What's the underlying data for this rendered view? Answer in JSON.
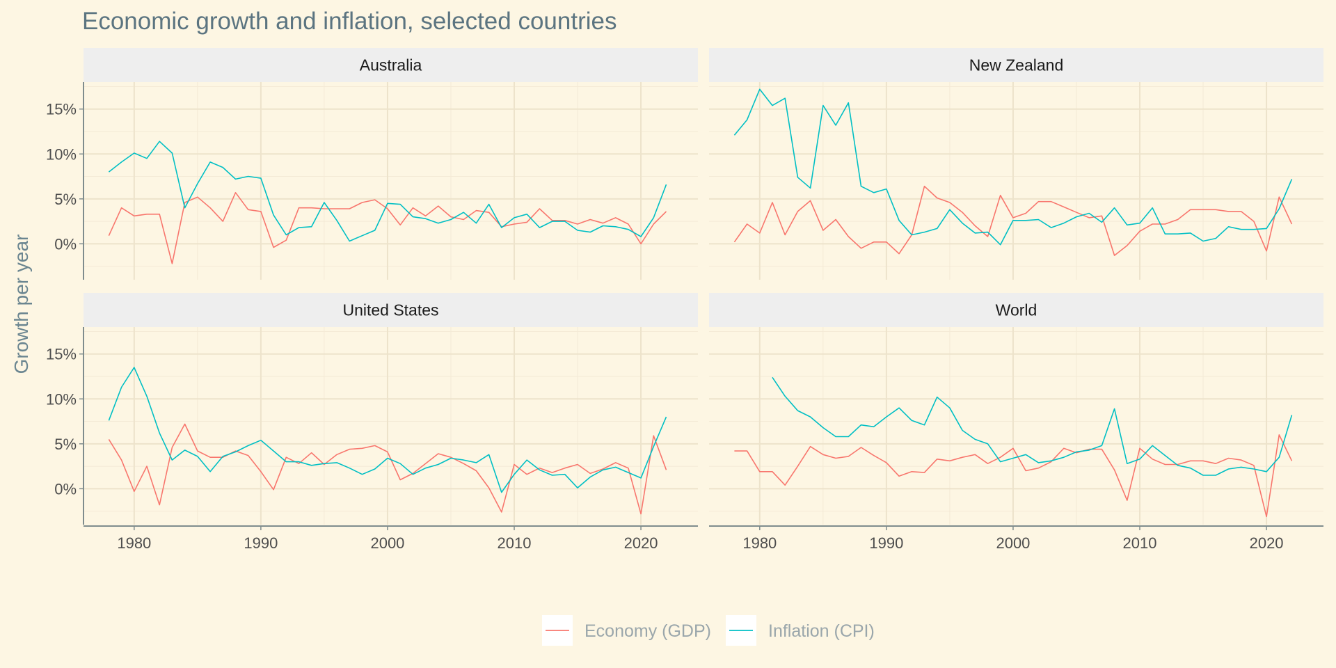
{
  "chart_data": {
    "type": "line",
    "title": "Economic growth and inflation, selected countries",
    "ylabel": "Growth per year",
    "xlabel": "",
    "xlim": [
      1976,
      2024.5
    ],
    "ylim": [
      -4,
      18
    ],
    "x_ticks": [
      1980,
      1990,
      2000,
      2010,
      2020
    ],
    "y_ticks": [
      0,
      5,
      10,
      15
    ],
    "y_tick_labels": [
      "0%",
      "5%",
      "10%",
      "15%"
    ],
    "grid": true,
    "legend_position": "bottom",
    "legend": [
      {
        "name": "Economy (GDP)",
        "color": "#f8766d"
      },
      {
        "name": "Inflation (CPI)",
        "color": "#00bfc4"
      }
    ],
    "panels": [
      {
        "name": "Australia",
        "series": [
          {
            "name": "Economy (GDP)",
            "x_start": 1978,
            "values": [
              0.9,
              4.0,
              3.1,
              3.3,
              3.3,
              -2.2,
              4.6,
              5.2,
              4.0,
              2.5,
              5.7,
              3.8,
              3.6,
              -0.4,
              0.4,
              4.0,
              4.0,
              3.9,
              3.9,
              3.9,
              4.6,
              4.9,
              3.9,
              2.1,
              4.0,
              3.1,
              4.2,
              3.0,
              2.7,
              3.7,
              3.5,
              1.9,
              2.2,
              2.4,
              3.9,
              2.6,
              2.6,
              2.2,
              2.7,
              2.3,
              2.9,
              2.2,
              0.0,
              2.2,
              3.6
            ]
          },
          {
            "name": "Inflation (CPI)",
            "x_start": 1978,
            "values": [
              8.0,
              9.1,
              10.1,
              9.5,
              11.4,
              10.1,
              4.0,
              6.7,
              9.1,
              8.5,
              7.2,
              7.5,
              7.3,
              3.2,
              1.0,
              1.8,
              1.9,
              4.6,
              2.6,
              0.3,
              0.9,
              1.5,
              4.5,
              4.4,
              3.0,
              2.8,
              2.3,
              2.7,
              3.5,
              2.3,
              4.4,
              1.8,
              2.9,
              3.3,
              1.8,
              2.5,
              2.5,
              1.5,
              1.3,
              2.0,
              1.9,
              1.6,
              0.8,
              2.9,
              6.6
            ]
          }
        ]
      },
      {
        "name": "New Zealand",
        "series": [
          {
            "name": "Economy (GDP)",
            "x_start": 1978,
            "values": [
              0.2,
              2.2,
              1.2,
              4.6,
              1.0,
              3.6,
              4.8,
              1.5,
              2.7,
              0.8,
              -0.5,
              0.2,
              0.2,
              -1.1,
              1.0,
              6.4,
              5.1,
              4.6,
              3.5,
              2.0,
              0.8,
              5.4,
              2.9,
              3.4,
              4.7,
              4.7,
              4.1,
              3.5,
              2.9,
              3.1,
              -1.3,
              -0.2,
              1.4,
              2.2,
              2.2,
              2.7,
              3.8,
              3.8,
              3.8,
              3.6,
              3.6,
              2.5,
              -0.8,
              5.2,
              2.2
            ]
          },
          {
            "name": "Inflation (CPI)",
            "x_start": 1978,
            "values": [
              12.1,
              13.8,
              17.2,
              15.4,
              16.2,
              7.4,
              6.2,
              15.4,
              13.2,
              15.7,
              6.4,
              5.7,
              6.1,
              2.6,
              1.0,
              1.3,
              1.7,
              3.8,
              2.3,
              1.2,
              1.3,
              -0.1,
              2.6,
              2.6,
              2.7,
              1.8,
              2.3,
              3.0,
              3.4,
              2.4,
              4.0,
              2.1,
              2.3,
              4.0,
              1.1,
              1.1,
              1.2,
              0.3,
              0.6,
              1.9,
              1.6,
              1.6,
              1.7,
              3.9,
              7.2
            ]
          }
        ]
      },
      {
        "name": "United States",
        "series": [
          {
            "name": "Economy (GDP)",
            "x_start": 1978,
            "values": [
              5.5,
              3.2,
              -0.3,
              2.5,
              -1.8,
              4.6,
              7.2,
              4.2,
              3.5,
              3.5,
              4.2,
              3.7,
              1.9,
              -0.1,
              3.5,
              2.8,
              4.0,
              2.7,
              3.8,
              4.4,
              4.5,
              4.8,
              4.1,
              1.0,
              1.7,
              2.8,
              3.9,
              3.5,
              2.8,
              2.0,
              0.1,
              -2.6,
              2.7,
              1.6,
              2.3,
              1.8,
              2.3,
              2.7,
              1.7,
              2.2,
              2.9,
              2.3,
              -2.8,
              5.9,
              2.1
            ]
          },
          {
            "name": "Inflation (CPI)",
            "x_start": 1978,
            "values": [
              7.6,
              11.3,
              13.5,
              10.3,
              6.2,
              3.2,
              4.3,
              3.6,
              1.9,
              3.6,
              4.1,
              4.8,
              5.4,
              4.2,
              3.0,
              3.0,
              2.6,
              2.8,
              2.9,
              2.3,
              1.6,
              2.2,
              3.4,
              2.8,
              1.6,
              2.3,
              2.7,
              3.4,
              3.2,
              2.9,
              3.8,
              -0.4,
              1.6,
              3.2,
              2.1,
              1.5,
              1.6,
              0.1,
              1.3,
              2.1,
              2.4,
              1.8,
              1.2,
              4.7,
              8.0
            ]
          }
        ]
      },
      {
        "name": "World",
        "series": [
          {
            "name": "Economy (GDP)",
            "x_start": 1978,
            "values": [
              4.2,
              4.2,
              1.9,
              1.9,
              0.4,
              2.5,
              4.7,
              3.8,
              3.4,
              3.6,
              4.6,
              3.7,
              2.9,
              1.4,
              1.9,
              1.8,
              3.3,
              3.1,
              3.5,
              3.8,
              2.8,
              3.5,
              4.5,
              2.0,
              2.3,
              3.0,
              4.5,
              4.0,
              4.4,
              4.4,
              2.1,
              -1.3,
              4.5,
              3.3,
              2.7,
              2.7,
              3.1,
              3.1,
              2.8,
              3.4,
              3.2,
              2.6,
              -3.1,
              6.0,
              3.1
            ]
          },
          {
            "name": "Inflation (CPI)",
            "x_start": 1981,
            "values": [
              12.4,
              10.3,
              8.7,
              8.0,
              6.8,
              5.8,
              5.8,
              7.1,
              6.9,
              8.0,
              9.0,
              7.6,
              7.1,
              10.2,
              9.0,
              6.5,
              5.5,
              5.0,
              3.0,
              3.4,
              3.8,
              2.9,
              3.1,
              3.5,
              4.1,
              4.3,
              4.8,
              8.9,
              2.8,
              3.3,
              4.8,
              3.7,
              2.6,
              2.3,
              1.5,
              1.5,
              2.2,
              2.4,
              2.2,
              1.9,
              3.5,
              8.2
            ]
          }
        ]
      }
    ]
  }
}
